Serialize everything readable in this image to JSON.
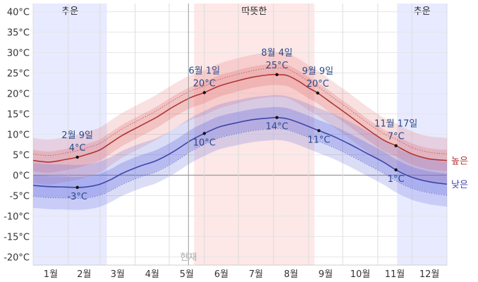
{
  "chart_data": {
    "type": "line",
    "title": "",
    "xlabel": "",
    "ylabel": "",
    "ylim": [
      -22,
      42
    ],
    "y_ticks": [
      -20,
      -15,
      -10,
      -5,
      0,
      5,
      10,
      15,
      20,
      25,
      30,
      35,
      40
    ],
    "y_unit": "°C",
    "x_range_days": [
      1,
      366
    ],
    "month_labels": [
      "1월",
      "2월",
      "3월",
      "4월",
      "5월",
      "6월",
      "7월",
      "8월",
      "9월",
      "10월",
      "11월",
      "12월"
    ],
    "seasons": [
      {
        "label": "추운",
        "start_day": 1,
        "end_day": 66,
        "color": "#e8eaff"
      },
      {
        "label": "따뜻한",
        "start_day": 143,
        "end_day": 249,
        "color": "#fde7e7"
      },
      {
        "label": "추운",
        "start_day": 322,
        "end_day": 366,
        "color": "#e8eaff"
      }
    ],
    "now_marker": {
      "label": "현재",
      "day": 138
    },
    "series": [
      {
        "name": "높은",
        "color": "#b03434",
        "x": [
          1,
          15,
          29,
          40,
          50,
          60,
          70,
          80,
          95,
          110,
          125,
          140,
          152,
          165,
          180,
          195,
          210,
          216,
          225,
          235,
          245,
          252,
          265,
          280,
          295,
          310,
          321,
          335,
          350,
          366
        ],
        "values": [
          3.6,
          3.2,
          3.8,
          4.4,
          5.2,
          6.2,
          8.0,
          9.8,
          12.0,
          14.2,
          16.8,
          19.0,
          20.2,
          21.8,
          23.0,
          24.0,
          24.6,
          24.6,
          24.4,
          23.0,
          21.2,
          20.1,
          17.5,
          14.5,
          11.4,
          8.6,
          7.2,
          5.2,
          4.0,
          3.6
        ],
        "band_outer": 5.5,
        "band_inner": 2.6
      },
      {
        "name": "낮은",
        "color": "#3f45a8",
        "x": [
          1,
          15,
          29,
          40,
          50,
          60,
          70,
          80,
          95,
          110,
          125,
          140,
          152,
          165,
          180,
          195,
          210,
          216,
          225,
          235,
          245,
          253,
          265,
          280,
          295,
          310,
          321,
          335,
          350,
          366
        ],
        "values": [
          -2.5,
          -2.8,
          -2.9,
          -3.0,
          -2.8,
          -2.2,
          -1.0,
          0.5,
          2.2,
          3.6,
          5.8,
          8.5,
          10.2,
          11.8,
          12.8,
          13.6,
          14.0,
          14.1,
          13.8,
          12.9,
          11.8,
          10.9,
          9.6,
          7.6,
          5.4,
          3.2,
          1.3,
          -0.5,
          -1.6,
          -2.2
        ],
        "band_outer": 5.5,
        "band_inner": 2.6
      }
    ],
    "annotations": [
      {
        "date": "2월 9일",
        "value": "4°C",
        "day": 40,
        "series": 0,
        "y": 4.4,
        "place": "above"
      },
      {
        "date": "",
        "value": "-3°C",
        "day": 40,
        "series": 1,
        "y": -3.0,
        "place": "below"
      },
      {
        "date": "6월 1일",
        "value": "20°C",
        "day": 152,
        "series": 0,
        "y": 20.2,
        "place": "above"
      },
      {
        "date": "",
        "value": "10°C",
        "day": 152,
        "series": 1,
        "y": 10.2,
        "place": "below"
      },
      {
        "date": "8월 4일",
        "value": "25°C",
        "day": 216,
        "series": 0,
        "y": 24.6,
        "place": "above"
      },
      {
        "date": "",
        "value": "14°C",
        "day": 216,
        "series": 1,
        "y": 14.1,
        "place": "below"
      },
      {
        "date": "9월 9일",
        "value": "20°C",
        "day": 252,
        "series": 0,
        "y": 20.1,
        "place": "above"
      },
      {
        "date": "",
        "value": "11°C",
        "day": 253,
        "series": 1,
        "y": 10.9,
        "place": "below"
      },
      {
        "date": "11월 17일",
        "value": "7°C",
        "day": 321,
        "series": 0,
        "y": 7.2,
        "place": "above"
      },
      {
        "date": "",
        "value": "1°C",
        "day": 321,
        "series": 1,
        "y": 1.3,
        "place": "below"
      }
    ],
    "legend": {
      "position": "right",
      "entries": [
        "높은",
        "낮은"
      ]
    },
    "grid": true
  }
}
